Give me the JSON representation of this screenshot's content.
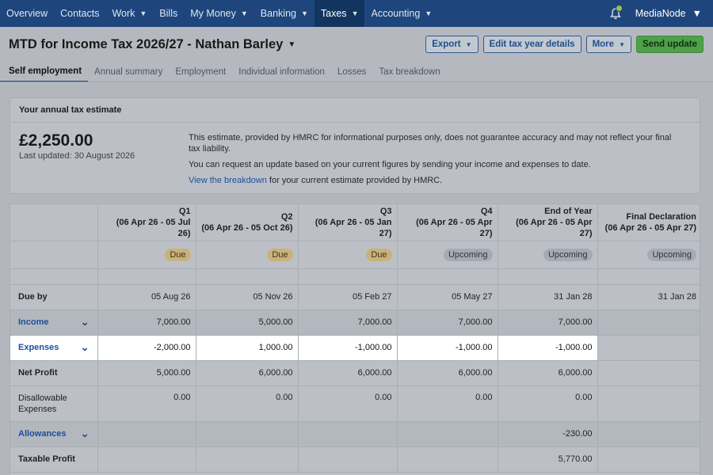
{
  "nav": {
    "items": [
      {
        "label": "Overview",
        "chevron": false,
        "active": false
      },
      {
        "label": "Contacts",
        "chevron": false,
        "active": false
      },
      {
        "label": "Work",
        "chevron": true,
        "active": false
      },
      {
        "label": "Bills",
        "chevron": false,
        "active": false
      },
      {
        "label": "My Money",
        "chevron": true,
        "active": false
      },
      {
        "label": "Banking",
        "chevron": true,
        "active": false
      },
      {
        "label": "Taxes",
        "chevron": true,
        "active": true
      },
      {
        "label": "Accounting",
        "chevron": true,
        "active": false
      }
    ],
    "org_name": "MediaNode"
  },
  "header": {
    "title": "MTD for Income Tax 2026/27 - Nathan Barley",
    "buttons": {
      "export": "Export",
      "edit": "Edit tax year details",
      "more": "More",
      "send": "Send update"
    },
    "tabs": [
      "Self employment",
      "Annual summary",
      "Employment",
      "Individual information",
      "Losses",
      "Tax breakdown"
    ]
  },
  "estimate": {
    "heading": "Your annual tax estimate",
    "amount": "£2,250.00",
    "updated": "Last updated: 30 August 2026",
    "para1": "This estimate, provided by HMRC for informational purposes only, does not guarantee accuracy and may not reflect your final tax liability.",
    "para2": "You can request an update based on your current figures by sending your income and expenses to date.",
    "link": "View the breakdown",
    "para3_rest": " for your current estimate provided by HMRC."
  },
  "table": {
    "columns": [
      {
        "name": "Q1",
        "range": "(06 Apr 26 - 05 Jul 26)",
        "status": "Due"
      },
      {
        "name": "Q2",
        "range": "(06 Apr 26 - 05 Oct 26)",
        "status": "Due"
      },
      {
        "name": "Q3",
        "range": "(06 Apr 26 - 05 Jan 27)",
        "status": "Due"
      },
      {
        "name": "Q4",
        "range": "(06 Apr 26 - 05 Apr 27)",
        "status": "Upcoming"
      },
      {
        "name": "End of Year",
        "range": "(06 Apr 26 - 05 Apr 27)",
        "status": "Upcoming"
      },
      {
        "name": "Final Declaration",
        "range": "(06 Apr 26 - 05 Apr 27)",
        "status": "Upcoming"
      }
    ],
    "due_by": {
      "label": "Due by",
      "values": [
        "05 Aug 26",
        "05 Nov 26",
        "05 Feb 27",
        "05 May 27",
        "31 Jan 28",
        "31 Jan 28"
      ]
    },
    "income": {
      "label": "Income",
      "values": [
        "7,000.00",
        "5,000.00",
        "7,000.00",
        "7,000.00",
        "7,000.00",
        ""
      ]
    },
    "expenses": {
      "label": "Expenses",
      "values": [
        "-2,000.00",
        "1,000.00",
        "-1,000.00",
        "-1,000.00",
        "-1,000.00",
        ""
      ]
    },
    "net_profit": {
      "label": "Net Profit",
      "values": [
        "5,000.00",
        "6,000.00",
        "6,000.00",
        "6,000.00",
        "6,000.00",
        ""
      ]
    },
    "disallowable": {
      "label": "Disallowable Expenses",
      "values": [
        "0.00",
        "0.00",
        "0.00",
        "0.00",
        "0.00",
        ""
      ]
    },
    "allowances": {
      "label": "Allowances",
      "values": [
        "",
        "",
        "",
        "",
        "-230.00",
        ""
      ]
    },
    "taxable_profit": {
      "label": "Taxable Profit",
      "values": [
        "",
        "",
        "",
        "",
        "5,770.00",
        ""
      ]
    }
  },
  "colors": {
    "nav_bg": "#1e467c",
    "accent": "#1d4f8f",
    "send_button": "#4ea14a",
    "due_badge": "#c9b27a",
    "upcoming_badge": "#a6abb3"
  }
}
